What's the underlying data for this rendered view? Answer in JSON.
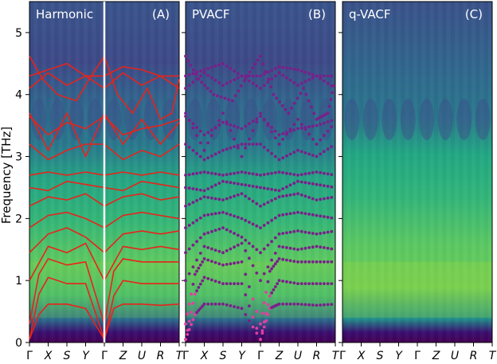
{
  "chart_data": [
    {
      "type": "heatmap",
      "panel_label": "(A)",
      "title": "Harmonic",
      "xlabel": "",
      "ylabel": "Frequency [THz]",
      "ylim": [
        0,
        5.5
      ],
      "yticks": [
        0,
        1,
        2,
        3,
        4,
        5
      ],
      "xticks": [
        "Γ",
        "X",
        "S",
        "Y",
        "Γ",
        "Z",
        "U",
        "R",
        "T"
      ],
      "overlay": "harmonic phonon dispersion (red lines)",
      "marker": {
        "label": "Γ",
        "style": "vertical white line"
      },
      "series": [
        {
          "values": [
            [
              0,
              0.05
            ],
            [
              0.5,
              0.45
            ],
            [
              1,
              0.62
            ],
            [
              2,
              0.62
            ],
            [
              3,
              0.55
            ],
            [
              4,
              0.05
            ],
            [
              4.5,
              0.55
            ],
            [
              5,
              0.62
            ],
            [
              6,
              0.62
            ],
            [
              7,
              0.6
            ],
            [
              8,
              0.62
            ]
          ]
        },
        {
          "values": [
            [
              0,
              0.05
            ],
            [
              0.5,
              0.78
            ],
            [
              1,
              1.05
            ],
            [
              2,
              0.95
            ],
            [
              3,
              0.95
            ],
            [
              4,
              0.05
            ],
            [
              4.5,
              0.75
            ],
            [
              5,
              1.0
            ],
            [
              6,
              0.95
            ],
            [
              7,
              0.95
            ],
            [
              8,
              0.95
            ]
          ]
        },
        {
          "values": [
            [
              0,
              0.3
            ],
            [
              0.5,
              1.1
            ],
            [
              1,
              1.35
            ],
            [
              2,
              1.25
            ],
            [
              3,
              1.3
            ],
            [
              4,
              0.3
            ],
            [
              4.5,
              1.15
            ],
            [
              5,
              1.35
            ],
            [
              6,
              1.3
            ],
            [
              7,
              1.3
            ],
            [
              8,
              1.3
            ]
          ]
        },
        {
          "values": [
            [
              0,
              1.0
            ],
            [
              1,
              1.55
            ],
            [
              2,
              1.45
            ],
            [
              3,
              1.6
            ],
            [
              4,
              1.0
            ],
            [
              5,
              1.55
            ],
            [
              6,
              1.5
            ],
            [
              7,
              1.55
            ],
            [
              8,
              1.5
            ]
          ]
        },
        {
          "values": [
            [
              0,
              1.45
            ],
            [
              1,
              1.75
            ],
            [
              2,
              1.85
            ],
            [
              3,
              1.7
            ],
            [
              4,
              1.45
            ],
            [
              5,
              1.75
            ],
            [
              6,
              1.8
            ],
            [
              7,
              1.75
            ],
            [
              8,
              1.8
            ]
          ]
        },
        {
          "values": [
            [
              0,
              1.85
            ],
            [
              1,
              2.05
            ],
            [
              2,
              2.1
            ],
            [
              3,
              2.0
            ],
            [
              4,
              1.85
            ],
            [
              5,
              2.05
            ],
            [
              6,
              2.1
            ],
            [
              7,
              2.05
            ],
            [
              8,
              2.0
            ]
          ]
        },
        {
          "values": [
            [
              0,
              2.2
            ],
            [
              1,
              2.35
            ],
            [
              2,
              2.3
            ],
            [
              3,
              2.4
            ],
            [
              4,
              2.2
            ],
            [
              5,
              2.35
            ],
            [
              6,
              2.4
            ],
            [
              7,
              2.3
            ],
            [
              8,
              2.35
            ]
          ]
        },
        {
          "values": [
            [
              0,
              2.5
            ],
            [
              1,
              2.45
            ],
            [
              2,
              2.6
            ],
            [
              3,
              2.55
            ],
            [
              4,
              2.5
            ],
            [
              5,
              2.45
            ],
            [
              6,
              2.6
            ],
            [
              7,
              2.55
            ],
            [
              8,
              2.5
            ]
          ]
        },
        {
          "values": [
            [
              0,
              2.7
            ],
            [
              1,
              2.75
            ],
            [
              2,
              2.7
            ],
            [
              3,
              2.75
            ],
            [
              4,
              2.7
            ],
            [
              5,
              2.75
            ],
            [
              6,
              2.7
            ],
            [
              7,
              2.75
            ],
            [
              8,
              2.7
            ]
          ]
        },
        {
          "values": [
            [
              0,
              3.2
            ],
            [
              1,
              2.95
            ],
            [
              2,
              3.1
            ],
            [
              3,
              3.2
            ],
            [
              4,
              3.2
            ],
            [
              5,
              2.95
            ],
            [
              6,
              3.1
            ],
            [
              7,
              3.0
            ],
            [
              8,
              3.2
            ]
          ]
        },
        {
          "values": [
            [
              0,
              3.65
            ],
            [
              1,
              3.35
            ],
            [
              2,
              3.55
            ],
            [
              3,
              3.45
            ],
            [
              4,
              3.65
            ],
            [
              5,
              3.35
            ],
            [
              6,
              3.45
            ],
            [
              7,
              3.5
            ],
            [
              8,
              3.6
            ]
          ]
        },
        {
          "values": [
            [
              0,
              3.7
            ],
            [
              1,
              3.1
            ],
            [
              2,
              3.7
            ],
            [
              3,
              3.0
            ],
            [
              4,
              3.7
            ],
            [
              5,
              3.2
            ],
            [
              6,
              3.6
            ],
            [
              7,
              3.2
            ],
            [
              8,
              3.55
            ]
          ]
        },
        {
          "values": [
            [
              0,
              4.1
            ],
            [
              1,
              4.35
            ],
            [
              2,
              4.15
            ],
            [
              3,
              4.3
            ],
            [
              4,
              4.1
            ],
            [
              5,
              4.35
            ],
            [
              6,
              4.15
            ],
            [
              7,
              4.3
            ],
            [
              8,
              4.1
            ]
          ]
        },
        {
          "values": [
            [
              0,
              4.3
            ],
            [
              1,
              4.4
            ],
            [
              2,
              4.5
            ],
            [
              3,
              4.3
            ],
            [
              4,
              4.3
            ],
            [
              5,
              4.45
            ],
            [
              6,
              4.4
            ],
            [
              7,
              4.3
            ],
            [
              8,
              4.3
            ]
          ]
        },
        {
          "values": [
            [
              0,
              4.62
            ],
            [
              0.7,
              4.25
            ],
            [
              1.5,
              4.0
            ],
            [
              2.5,
              3.9
            ],
            [
              3.3,
              4.3
            ],
            [
              4,
              4.62
            ],
            [
              4.7,
              4.0
            ],
            [
              5.5,
              3.7
            ],
            [
              6.3,
              4.1
            ],
            [
              7,
              3.6
            ],
            [
              7.6,
              3.7
            ],
            [
              8,
              4.25
            ]
          ]
        }
      ]
    },
    {
      "type": "heatmap",
      "panel_label": "(B)",
      "title": "PVACF",
      "xlabel": "",
      "ylabel": "",
      "ylim": [
        0,
        5.5
      ],
      "xticks": [
        "Γ",
        "X",
        "S",
        "Y",
        "Γ",
        "Z",
        "U",
        "R",
        "T"
      ],
      "overlay": "peak frequencies (purple dots, magenta near Γ at low frequency)"
    },
    {
      "type": "heatmap",
      "panel_label": "(C)",
      "title": "q-VACF",
      "xlabel": "",
      "ylabel": "",
      "ylim": [
        0,
        5.5
      ],
      "xticks": [
        "Γ",
        "X",
        "S",
        "Y",
        "Γ",
        "Z",
        "U",
        "R",
        "T"
      ]
    }
  ],
  "colors": {
    "background_cmap": "viridis",
    "harmonic_lines": "#e8231a",
    "pvacf_dots": "#7b1f8a",
    "pvacf_low_dots": "#e040a0",
    "marker_line": "#ffffff"
  }
}
